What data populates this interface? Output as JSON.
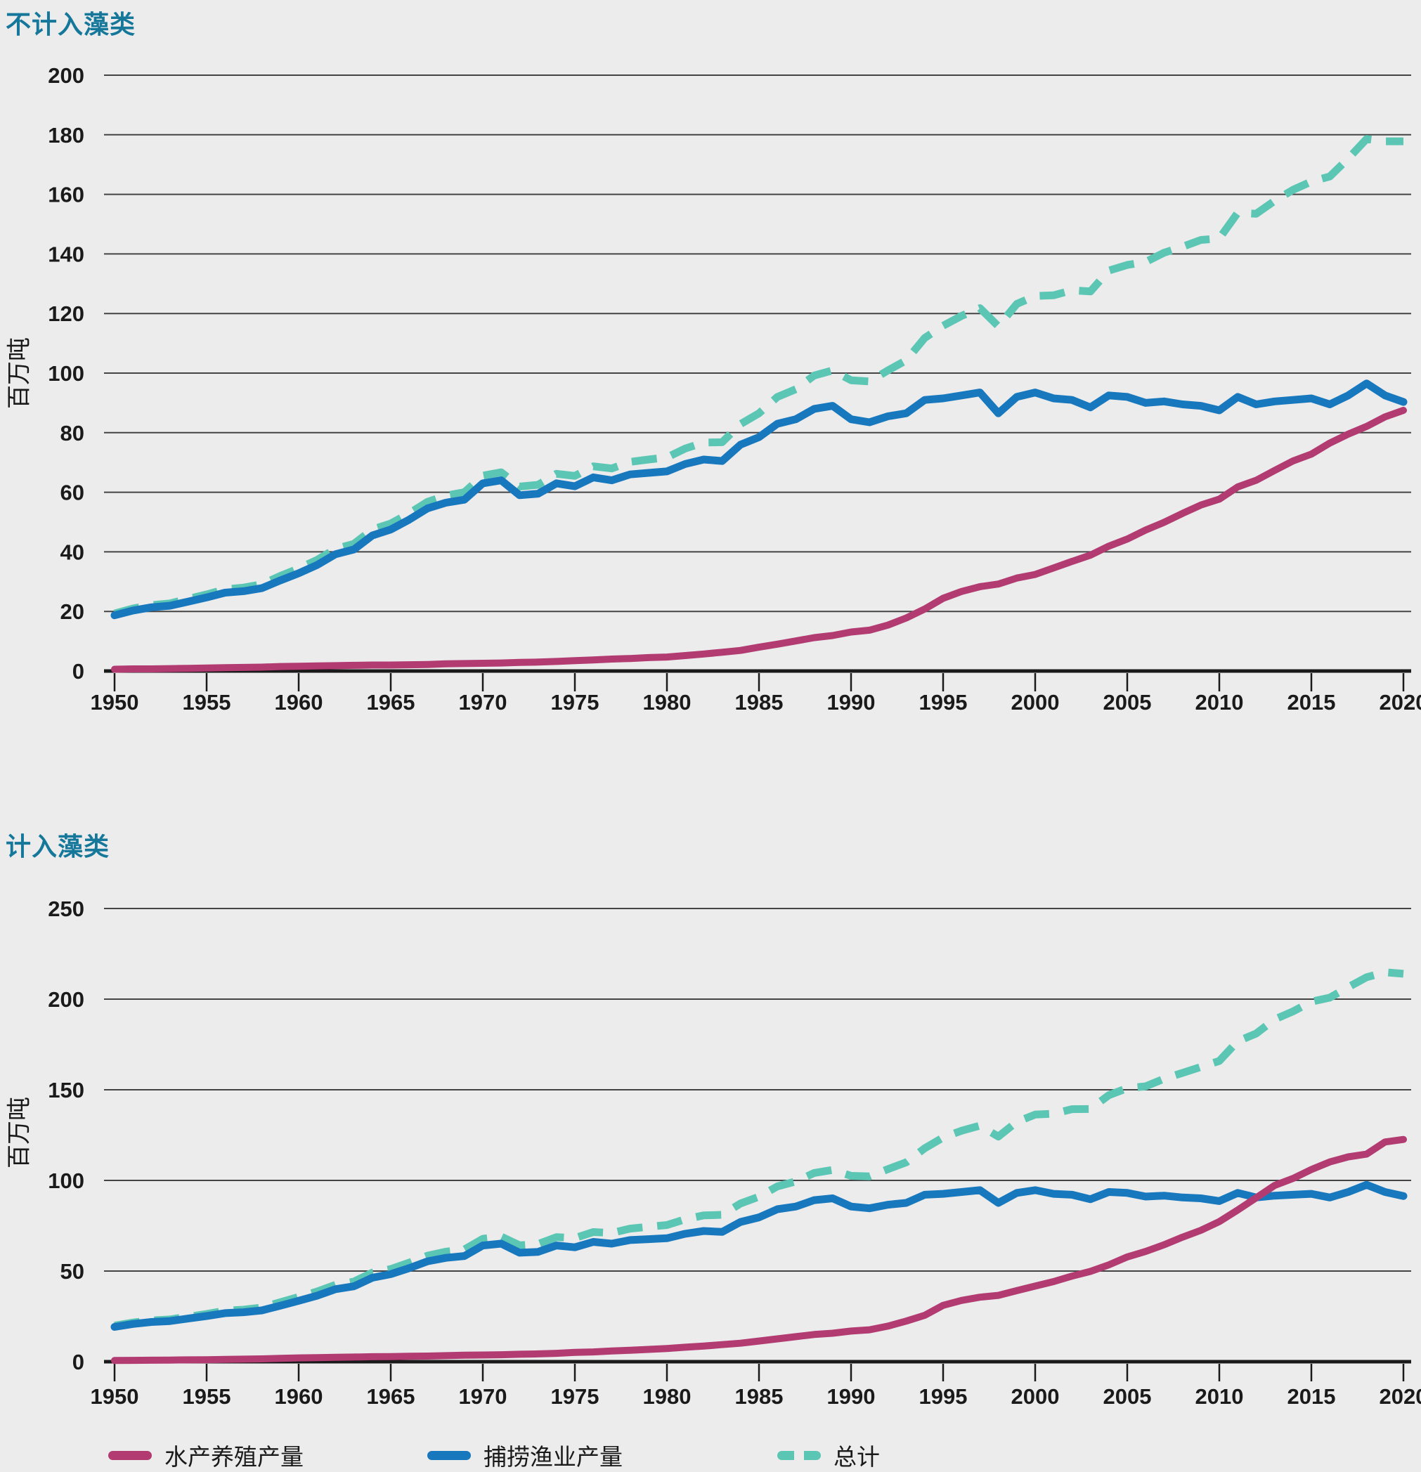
{
  "colors": {
    "background": "#ECECEC",
    "grid": "#444444",
    "axis": "#1A1A1A",
    "tick_text": "#1A1A1A",
    "title": "#15789B",
    "aquaculture": "#B23B72",
    "capture": "#1878BE",
    "total": "#5CC6B4"
  },
  "legend": {
    "items": [
      {
        "label": "水产养殖产量",
        "series_key": "aquaculture",
        "marker": "solid"
      },
      {
        "label": "捕捞渔业产量",
        "series_key": "capture",
        "marker": "solid"
      },
      {
        "label": "总计",
        "series_key": "total",
        "marker": "dashed"
      }
    ]
  },
  "chart_data": [
    {
      "type": "line",
      "title": "不计入藻类",
      "xlabel": "",
      "ylabel": "百万吨",
      "grid": true,
      "legend_position": "bottom",
      "xlim": [
        1950,
        2020
      ],
      "ylim": [
        0,
        200
      ],
      "yticks": [
        0,
        20,
        40,
        60,
        80,
        100,
        120,
        140,
        160,
        180,
        200
      ],
      "xticks": [
        1950,
        1955,
        1960,
        1965,
        1970,
        1975,
        1980,
        1985,
        1990,
        1995,
        2000,
        2005,
        2010,
        2015,
        2020
      ],
      "x": [
        1950,
        1951,
        1952,
        1953,
        1954,
        1955,
        1956,
        1957,
        1958,
        1959,
        1960,
        1961,
        1962,
        1963,
        1964,
        1965,
        1966,
        1967,
        1968,
        1969,
        1970,
        1971,
        1972,
        1973,
        1974,
        1975,
        1976,
        1977,
        1978,
        1979,
        1980,
        1981,
        1982,
        1983,
        1984,
        1985,
        1986,
        1987,
        1988,
        1989,
        1990,
        1991,
        1992,
        1993,
        1994,
        1995,
        1996,
        1997,
        1998,
        1999,
        2000,
        2001,
        2002,
        2003,
        2004,
        2005,
        2006,
        2007,
        2008,
        2009,
        2010,
        2011,
        2012,
        2013,
        2014,
        2015,
        2016,
        2017,
        2018,
        2019,
        2020
      ],
      "series": [
        {
          "name": "水产养殖产量",
          "key": "aquaculture",
          "style": "solid",
          "values": [
            0.6,
            0.7,
            0.7,
            0.8,
            0.9,
            1.0,
            1.1,
            1.2,
            1.3,
            1.5,
            1.6,
            1.7,
            1.8,
            1.9,
            2.0,
            2.0,
            2.1,
            2.2,
            2.4,
            2.5,
            2.6,
            2.7,
            2.9,
            3.0,
            3.2,
            3.5,
            3.7,
            4.0,
            4.2,
            4.5,
            4.7,
            5.2,
            5.7,
            6.3,
            6.9,
            8.0,
            9.0,
            10.1,
            11.2,
            11.9,
            13.1,
            13.7,
            15.4,
            17.8,
            20.8,
            24.4,
            26.7,
            28.3,
            29.2,
            31.2,
            32.4,
            34.6,
            36.8,
            38.9,
            41.9,
            44.3,
            47.3,
            49.9,
            52.9,
            55.7,
            57.7,
            61.8,
            64.0,
            67.3,
            70.5,
            72.8,
            76.5,
            79.5,
            82.1,
            85.3,
            87.5
          ]
        },
        {
          "name": "捕捞渔业产量",
          "key": "capture",
          "style": "solid",
          "values": [
            18.7,
            20.3,
            21.4,
            21.9,
            23.3,
            24.7,
            26.3,
            26.8,
            27.8,
            30.4,
            32.8,
            35.6,
            39.2,
            40.8,
            45.5,
            47.5,
            50.8,
            54.6,
            56.5,
            57.5,
            63.0,
            64.0,
            59.0,
            59.5,
            63.0,
            62.0,
            65.0,
            64.0,
            66.0,
            66.5,
            67.0,
            69.5,
            71.0,
            70.5,
            76.0,
            78.5,
            83.0,
            84.5,
            88.0,
            89.0,
            84.5,
            83.5,
            85.5,
            86.5,
            91.0,
            91.5,
            92.5,
            93.5,
            86.5,
            92.0,
            93.5,
            91.5,
            91.0,
            88.5,
            92.5,
            92.0,
            90.0,
            90.5,
            89.5,
            89.0,
            87.5,
            92.0,
            89.5,
            90.5,
            91.0,
            91.5,
            89.5,
            92.5,
            96.5,
            92.5,
            90.3
          ]
        },
        {
          "name": "总计",
          "key": "total",
          "style": "dashed",
          "values": [
            19.3,
            21.0,
            22.1,
            22.7,
            24.2,
            25.7,
            27.4,
            28.0,
            29.1,
            31.9,
            34.4,
            37.3,
            41.0,
            42.7,
            47.5,
            49.5,
            52.9,
            56.8,
            58.9,
            60.0,
            65.6,
            66.7,
            61.9,
            62.5,
            66.2,
            65.5,
            68.7,
            68.0,
            70.2,
            71.0,
            71.7,
            74.7,
            76.7,
            76.8,
            82.9,
            86.5,
            92.0,
            94.6,
            99.2,
            100.9,
            97.6,
            97.2,
            100.9,
            104.3,
            111.8,
            115.9,
            119.2,
            121.8,
            115.7,
            123.2,
            125.9,
            126.1,
            127.8,
            127.4,
            134.4,
            136.3,
            137.3,
            140.4,
            142.4,
            144.7,
            145.2,
            153.8,
            153.5,
            157.8,
            161.5,
            164.3,
            166.0,
            172.0,
            178.6,
            177.8,
            177.8
          ]
        }
      ]
    },
    {
      "type": "line",
      "title": "计入藻类",
      "xlabel": "",
      "ylabel": "百万吨",
      "grid": true,
      "legend_position": "bottom",
      "xlim": [
        1950,
        2020
      ],
      "ylim": [
        0,
        250
      ],
      "yticks": [
        0,
        50,
        100,
        150,
        200,
        250
      ],
      "xticks": [
        1950,
        1955,
        1960,
        1965,
        1970,
        1975,
        1980,
        1985,
        1990,
        1995,
        2000,
        2005,
        2010,
        2015,
        2020
      ],
      "x": [
        1950,
        1951,
        1952,
        1953,
        1954,
        1955,
        1956,
        1957,
        1958,
        1959,
        1960,
        1961,
        1962,
        1963,
        1964,
        1965,
        1966,
        1967,
        1968,
        1969,
        1970,
        1971,
        1972,
        1973,
        1974,
        1975,
        1976,
        1977,
        1978,
        1979,
        1980,
        1981,
        1982,
        1983,
        1984,
        1985,
        1986,
        1987,
        1988,
        1989,
        1990,
        1991,
        1992,
        1993,
        1994,
        1995,
        1996,
        1997,
        1998,
        1999,
        2000,
        2001,
        2002,
        2003,
        2004,
        2005,
        2006,
        2007,
        2008,
        2009,
        2010,
        2011,
        2012,
        2013,
        2014,
        2015,
        2016,
        2017,
        2018,
        2019,
        2020
      ],
      "series": [
        {
          "name": "水产养殖产量",
          "key": "aquaculture",
          "style": "solid",
          "values": [
            0.65,
            0.75,
            0.8,
            0.9,
            1.0,
            1.1,
            1.25,
            1.4,
            1.55,
            1.85,
            2.1,
            2.25,
            2.4,
            2.55,
            2.75,
            2.8,
            3.0,
            3.1,
            3.35,
            3.55,
            3.7,
            3.85,
            4.1,
            4.3,
            4.6,
            5.1,
            5.4,
            5.9,
            6.3,
            6.8,
            7.3,
            8.0,
            8.6,
            9.4,
            10.2,
            11.4,
            12.6,
            13.8,
            15.0,
            15.7,
            16.9,
            17.6,
            19.6,
            22.4,
            25.6,
            31.1,
            33.8,
            35.6,
            36.6,
            39.2,
            41.7,
            44.2,
            47.2,
            49.8,
            53.4,
            57.8,
            60.8,
            64.5,
            68.7,
            72.5,
            77.3,
            83.7,
            90.4,
            97.2,
            101.1,
            106.0,
            110.2,
            113.0,
            114.5,
            121.2,
            122.6
          ]
        },
        {
          "name": "捕捞渔业产量",
          "key": "capture",
          "style": "solid",
          "values": [
            19.2,
            20.8,
            21.9,
            22.4,
            23.8,
            25.2,
            26.8,
            27.3,
            28.3,
            30.9,
            33.6,
            36.4,
            40.0,
            41.6,
            46.3,
            48.3,
            51.6,
            55.4,
            57.3,
            58.3,
            64.1,
            65.1,
            60.1,
            60.6,
            64.1,
            63.1,
            66.1,
            65.1,
            67.1,
            67.6,
            68.1,
            70.6,
            72.1,
            71.6,
            77.1,
            79.6,
            84.1,
            85.6,
            89.1,
            90.1,
            85.6,
            84.6,
            86.6,
            87.6,
            92.1,
            92.6,
            93.6,
            94.6,
            87.6,
            93.1,
            94.6,
            92.6,
            92.1,
            89.6,
            93.6,
            93.1,
            91.1,
            91.6,
            90.6,
            90.1,
            88.6,
            93.1,
            90.6,
            91.6,
            92.1,
            92.6,
            90.6,
            93.6,
            97.6,
            93.6,
            91.4
          ]
        },
        {
          "name": "总计",
          "key": "total",
          "style": "dashed",
          "values": [
            19.9,
            21.6,
            22.7,
            23.3,
            24.8,
            26.3,
            28.1,
            28.7,
            29.9,
            32.8,
            35.7,
            38.7,
            42.4,
            44.2,
            49.1,
            51.1,
            54.6,
            58.5,
            60.7,
            61.9,
            67.8,
            69.0,
            64.2,
            64.9,
            68.7,
            68.2,
            71.5,
            71.0,
            73.4,
            74.4,
            75.4,
            78.6,
            80.7,
            81.0,
            87.3,
            91.0,
            96.7,
            99.4,
            104.1,
            105.8,
            102.5,
            102.2,
            106.2,
            110.0,
            117.7,
            123.7,
            127.4,
            130.2,
            124.2,
            132.3,
            136.3,
            136.8,
            139.3,
            139.4,
            147.0,
            150.9,
            151.9,
            156.1,
            159.3,
            162.6,
            165.9,
            176.8,
            181.0,
            188.8,
            193.2,
            198.6,
            200.8,
            206.6,
            212.1,
            214.8,
            214.0
          ]
        }
      ]
    }
  ]
}
